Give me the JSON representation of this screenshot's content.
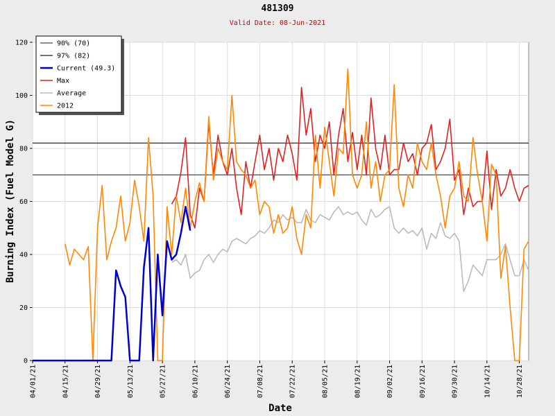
{
  "chart_data": {
    "type": "line",
    "title": "481309",
    "subtitle": "Valid Date: 08-Jun-2021",
    "xlabel": "Date",
    "ylabel": "Burning Index (Fuel Model G)",
    "ylim": [
      0,
      120
    ],
    "yticks": [
      0,
      20,
      40,
      60,
      80,
      100,
      120
    ],
    "grid": true,
    "legend": "upper left",
    "categories": [
      "04/01/21",
      null,
      null,
      null,
      null,
      null,
      null,
      "04/15/21",
      null,
      null,
      null,
      null,
      null,
      null,
      "04/29/21",
      null,
      null,
      null,
      null,
      null,
      null,
      "05/13/21",
      null,
      null,
      null,
      null,
      null,
      null,
      "05/27/21",
      null,
      null,
      null,
      null,
      null,
      null,
      "06/10/21",
      null,
      null,
      null,
      null,
      null,
      null,
      "06/24/21",
      null,
      null,
      null,
      null,
      null,
      null,
      "07/08/21",
      null,
      null,
      null,
      null,
      null,
      null,
      "07/22/21",
      null,
      null,
      null,
      null,
      null,
      null,
      "08/05/21",
      null,
      null,
      null,
      null,
      null,
      null,
      "08/19/21",
      null,
      null,
      null,
      null,
      null,
      null,
      "09/02/21",
      null,
      null,
      null,
      null,
      null,
      null,
      "09/16/21",
      null,
      null,
      null,
      null,
      null,
      null,
      "09/30/21",
      null,
      null,
      null,
      null,
      null,
      null,
      "10/14/21",
      null,
      null,
      null,
      null,
      null,
      null,
      "10/28/21",
      null,
      null
    ],
    "reference_lines": [
      {
        "name": "90% (70)",
        "color": "#666666",
        "value": 70
      },
      {
        "name": "97% (82)",
        "color": "#444444",
        "value": 82
      }
    ],
    "series": [
      {
        "name": "Current (49.3)",
        "color": "#0000cc",
        "values": [
          0,
          0,
          0,
          0,
          0,
          0,
          0,
          0,
          0,
          0,
          0,
          0,
          0,
          0,
          0,
          0,
          0,
          0,
          34,
          28,
          24,
          0,
          0,
          0,
          35,
          50,
          0,
          40,
          17,
          45,
          38,
          40,
          48,
          58,
          49,
          null,
          null,
          null,
          null,
          null,
          null,
          null,
          null,
          null,
          null,
          null,
          null,
          null,
          null,
          null,
          null,
          null,
          null,
          null,
          null,
          null,
          null,
          null,
          null,
          null,
          null,
          null,
          null,
          null,
          null,
          null,
          null,
          null,
          null,
          null,
          null,
          null,
          null,
          null,
          null,
          null,
          null,
          null,
          null,
          null,
          null,
          null,
          null,
          null,
          null,
          null,
          null,
          null,
          null,
          null,
          null,
          null,
          null,
          null,
          null,
          null,
          null,
          null,
          null,
          null,
          null,
          null,
          null,
          null,
          null,
          null,
          null,
          null
        ]
      },
      {
        "name": "Max",
        "color": "#dd2222",
        "values": [
          null,
          null,
          null,
          null,
          null,
          null,
          null,
          null,
          null,
          null,
          null,
          null,
          null,
          null,
          null,
          null,
          null,
          null,
          null,
          null,
          null,
          null,
          null,
          null,
          null,
          null,
          null,
          null,
          null,
          null,
          59,
          62,
          71,
          84,
          55,
          50,
          65,
          60,
          90,
          70,
          85,
          75,
          70,
          80,
          65,
          55,
          75,
          65,
          75,
          85,
          72,
          80,
          68,
          80,
          75,
          85,
          78,
          68,
          103,
          85,
          95,
          75,
          85,
          80,
          90,
          70,
          85,
          95,
          75,
          86,
          72,
          85,
          70,
          99,
          80,
          72,
          85,
          70,
          72,
          72,
          82,
          75,
          78,
          70,
          80,
          82,
          89,
          72,
          75,
          80,
          91,
          68,
          72,
          55,
          65,
          58,
          60,
          60,
          79,
          57,
          72,
          62,
          65,
          72,
          65,
          60,
          65,
          66
        ]
      },
      {
        "name": "Average",
        "color": "#bbbbbb",
        "values": [
          null,
          null,
          null,
          null,
          null,
          null,
          null,
          null,
          null,
          null,
          null,
          null,
          null,
          null,
          null,
          null,
          null,
          null,
          null,
          null,
          null,
          null,
          null,
          null,
          null,
          null,
          null,
          null,
          null,
          null,
          37,
          38,
          36,
          40,
          31,
          33,
          34,
          38,
          40,
          37,
          40,
          42,
          41,
          45,
          46,
          45,
          44,
          46,
          47,
          49,
          48,
          50,
          53,
          52,
          55,
          53,
          54,
          52,
          52,
          57,
          53,
          52,
          55,
          54,
          53,
          56,
          58,
          55,
          56,
          55,
          56,
          53,
          51,
          57,
          54,
          55,
          57,
          58,
          50,
          48,
          50,
          48,
          49,
          47,
          50,
          42,
          48,
          46,
          52,
          47,
          46,
          48,
          45,
          26,
          30,
          36,
          34,
          32,
          38,
          38,
          38,
          40,
          44,
          38,
          32,
          32,
          38,
          34
        ]
      },
      {
        "name": "2012",
        "color": "#ff8800",
        "values": [
          null,
          null,
          null,
          null,
          null,
          null,
          null,
          44,
          36,
          42,
          40,
          38,
          43,
          0,
          50,
          66,
          38,
          45,
          50,
          62,
          45,
          52,
          68,
          58,
          45,
          84,
          62,
          0,
          0,
          58,
          40,
          62,
          52,
          65,
          50,
          60,
          67,
          60,
          92,
          68,
          80,
          75,
          72,
          100,
          75,
          72,
          70,
          65,
          68,
          55,
          60,
          58,
          48,
          55,
          48,
          50,
          58,
          46,
          40,
          55,
          50,
          85,
          65,
          88,
          75,
          62,
          80,
          78,
          110,
          70,
          65,
          70,
          90,
          65,
          75,
          60,
          70,
          72,
          104,
          65,
          58,
          70,
          65,
          82,
          75,
          72,
          82,
          70,
          62,
          50,
          62,
          65,
          75,
          62,
          60,
          84,
          70,
          60,
          45,
          74,
          70,
          31,
          43,
          20,
          0,
          0,
          42,
          45
        ]
      }
    ]
  }
}
